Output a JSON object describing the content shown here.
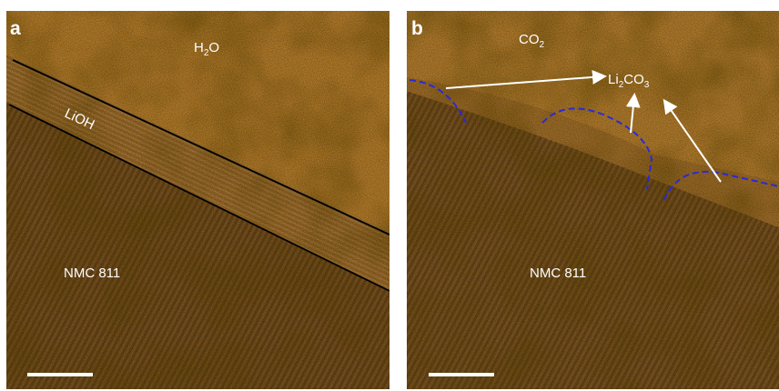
{
  "panels": [
    {
      "label": "a",
      "gas": {
        "main": "H",
        "sub": "2",
        "tail": "O"
      },
      "layer": "LiOH",
      "material": "NMC 811"
    },
    {
      "label": "b",
      "gas": {
        "main": "CO",
        "sub": "2"
      },
      "product": {
        "main": "Li",
        "sub": "2",
        "mid": "CO",
        "sub2": "3"
      },
      "material": "NMC 811"
    }
  ]
}
